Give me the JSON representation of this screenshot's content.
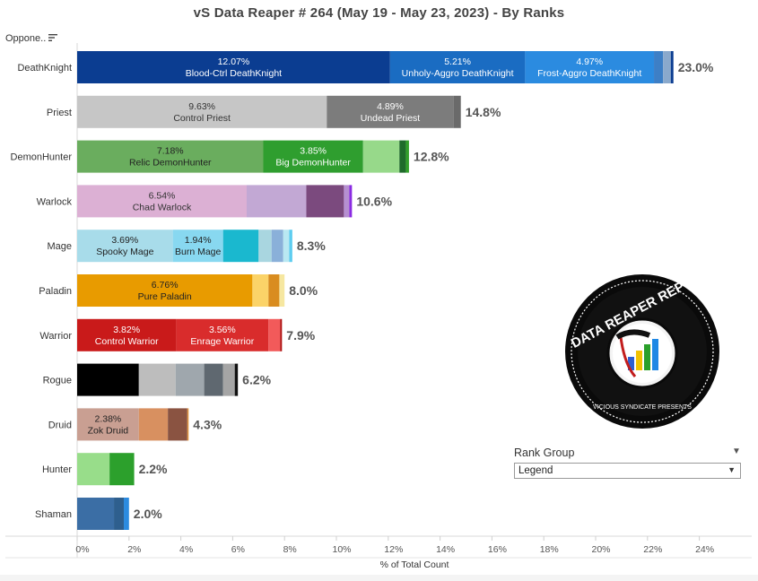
{
  "chart_title": "vS Data Reaper #  264 (May 19 - May 23, 2023) - By Ranks",
  "column_header": "Oppone..",
  "rank_group": {
    "title": "Rank Group",
    "value": "Legend"
  },
  "logo": {
    "text_main": "DATA REAPER REPORT",
    "text_sub": "VICIOUS SYNDICATE PRESENTS"
  },
  "chart_data": {
    "type": "bar",
    "orientation": "horizontal",
    "stacked": true,
    "xlabel": "% of Total Count",
    "xlim": [
      0,
      25
    ],
    "xticks": [
      "0%",
      "2%",
      "4%",
      "6%",
      "8%",
      "10%",
      "12%",
      "14%",
      "16%",
      "18%",
      "20%",
      "22%",
      "24%"
    ],
    "classes": [
      {
        "name": "DeathKnight",
        "total": "23.0%",
        "segments": [
          {
            "value": 12.07,
            "color": "#0b3d91",
            "pct": "12.07%",
            "label": "Blood-Ctrl DeathKnight",
            "text_color": "#ffffff"
          },
          {
            "value": 5.21,
            "color": "#1a6cc2",
            "pct": "5.21%",
            "label": "Unholy-Aggro DeathKnight",
            "text_color": "#ffffff"
          },
          {
            "value": 4.97,
            "color": "#2b8be0",
            "pct": "4.97%",
            "label": "Frost-Aggro DeathKnight",
            "text_color": "#ffffff"
          },
          {
            "value": 0.35,
            "color": "#3d7fc6"
          },
          {
            "value": 0.3,
            "color": "#8aa9cc"
          },
          {
            "value": 0.1,
            "color": "#0b3d91"
          }
        ]
      },
      {
        "name": "Priest",
        "total": "14.8%",
        "segments": [
          {
            "value": 9.63,
            "color": "#c6c6c6",
            "pct": "9.63%",
            "label": "Control Priest",
            "text_color": "#333333"
          },
          {
            "value": 4.89,
            "color": "#7c7c7c",
            "pct": "4.89%",
            "label": "Undead Priest",
            "text_color": "#ffffff"
          },
          {
            "value": 0.28,
            "color": "#6a6a6a"
          }
        ]
      },
      {
        "name": "DemonHunter",
        "total": "12.8%",
        "segments": [
          {
            "value": 7.18,
            "color": "#6aad5e",
            "pct": "7.18%",
            "label": "Relic DemonHunter",
            "text_color": "#222222"
          },
          {
            "value": 3.85,
            "color": "#2f9e2f",
            "pct": "3.85%",
            "label": "Big DemonHunter",
            "text_color": "#ffffff"
          },
          {
            "value": 1.4,
            "color": "#97d98a"
          },
          {
            "value": 0.25,
            "color": "#1f6b2b"
          },
          {
            "value": 0.12,
            "color": "#33a02c"
          }
        ]
      },
      {
        "name": "Warlock",
        "total": "10.6%",
        "segments": [
          {
            "value": 6.54,
            "color": "#dcb0d4",
            "pct": "6.54%",
            "label": "Chad Warlock",
            "text_color": "#333333"
          },
          {
            "value": 2.3,
            "color": "#c2a8d4"
          },
          {
            "value": 1.45,
            "color": "#7b4a7e"
          },
          {
            "value": 0.21,
            "color": "#b68fd1"
          },
          {
            "value": 0.1,
            "color": "#8a2be2"
          }
        ]
      },
      {
        "name": "Mage",
        "total": "8.3%",
        "segments": [
          {
            "value": 3.69,
            "color": "#a8dcea",
            "pct": "3.69%",
            "label": "Spooky Mage",
            "text_color": "#222222"
          },
          {
            "value": 1.94,
            "color": "#88d8f0",
            "pct": "1.94%",
            "label": "Burn Mage",
            "text_color": "#222222"
          },
          {
            "value": 1.37,
            "color": "#1ab8cf"
          },
          {
            "value": 0.5,
            "color": "#a9d6e0"
          },
          {
            "value": 0.45,
            "color": "#8ab0d9"
          },
          {
            "value": 0.23,
            "color": "#b9e8f2"
          },
          {
            "value": 0.12,
            "color": "#5ecdf0"
          }
        ]
      },
      {
        "name": "Paladin",
        "total": "8.0%",
        "segments": [
          {
            "value": 6.76,
            "color": "#e89b00",
            "pct": "6.76%",
            "label": "Pure Paladin",
            "text_color": "#222222"
          },
          {
            "value": 0.62,
            "color": "#fbd368"
          },
          {
            "value": 0.42,
            "color": "#d98c1f"
          },
          {
            "value": 0.2,
            "color": "#f6e7a0"
          }
        ]
      },
      {
        "name": "Warrior",
        "total": "7.9%",
        "segments": [
          {
            "value": 3.82,
            "color": "#c91a1a",
            "pct": "3.82%",
            "label": "Control Warrior",
            "text_color": "#ffffff"
          },
          {
            "value": 3.56,
            "color": "#d92c2c",
            "pct": "3.56%",
            "label": "Enrage Warrior",
            "text_color": "#ffffff"
          },
          {
            "value": 0.45,
            "color": "#f25a5a"
          },
          {
            "value": 0.07,
            "color": "#b01010"
          }
        ]
      },
      {
        "name": "Rogue",
        "total": "6.2%",
        "segments": [
          {
            "value": 2.38,
            "color": "#000000"
          },
          {
            "value": 1.42,
            "color": "#bdbdbd"
          },
          {
            "value": 1.1,
            "color": "#9fa7ad"
          },
          {
            "value": 0.73,
            "color": "#5f6870"
          },
          {
            "value": 0.45,
            "color": "#a5a5a5"
          },
          {
            "value": 0.12,
            "color": "#111111"
          }
        ]
      },
      {
        "name": "Druid",
        "total": "4.3%",
        "segments": [
          {
            "value": 2.38,
            "color": "#c99f92",
            "pct": "2.38%",
            "label": "Zok Druid",
            "text_color": "#222222"
          },
          {
            "value": 1.12,
            "color": "#d89060"
          },
          {
            "value": 0.75,
            "color": "#8a5341"
          },
          {
            "value": 0.05,
            "color": "#e0913a"
          }
        ]
      },
      {
        "name": "Hunter",
        "total": "2.2%",
        "segments": [
          {
            "value": 1.25,
            "color": "#98dd8a"
          },
          {
            "value": 0.95,
            "color": "#2ca02c"
          }
        ]
      },
      {
        "name": "Shaman",
        "total": "2.0%",
        "segments": [
          {
            "value": 1.42,
            "color": "#3b6ea5"
          },
          {
            "value": 0.38,
            "color": "#2e5f8e"
          },
          {
            "value": 0.2,
            "color": "#2b8be0"
          }
        ]
      }
    ]
  }
}
